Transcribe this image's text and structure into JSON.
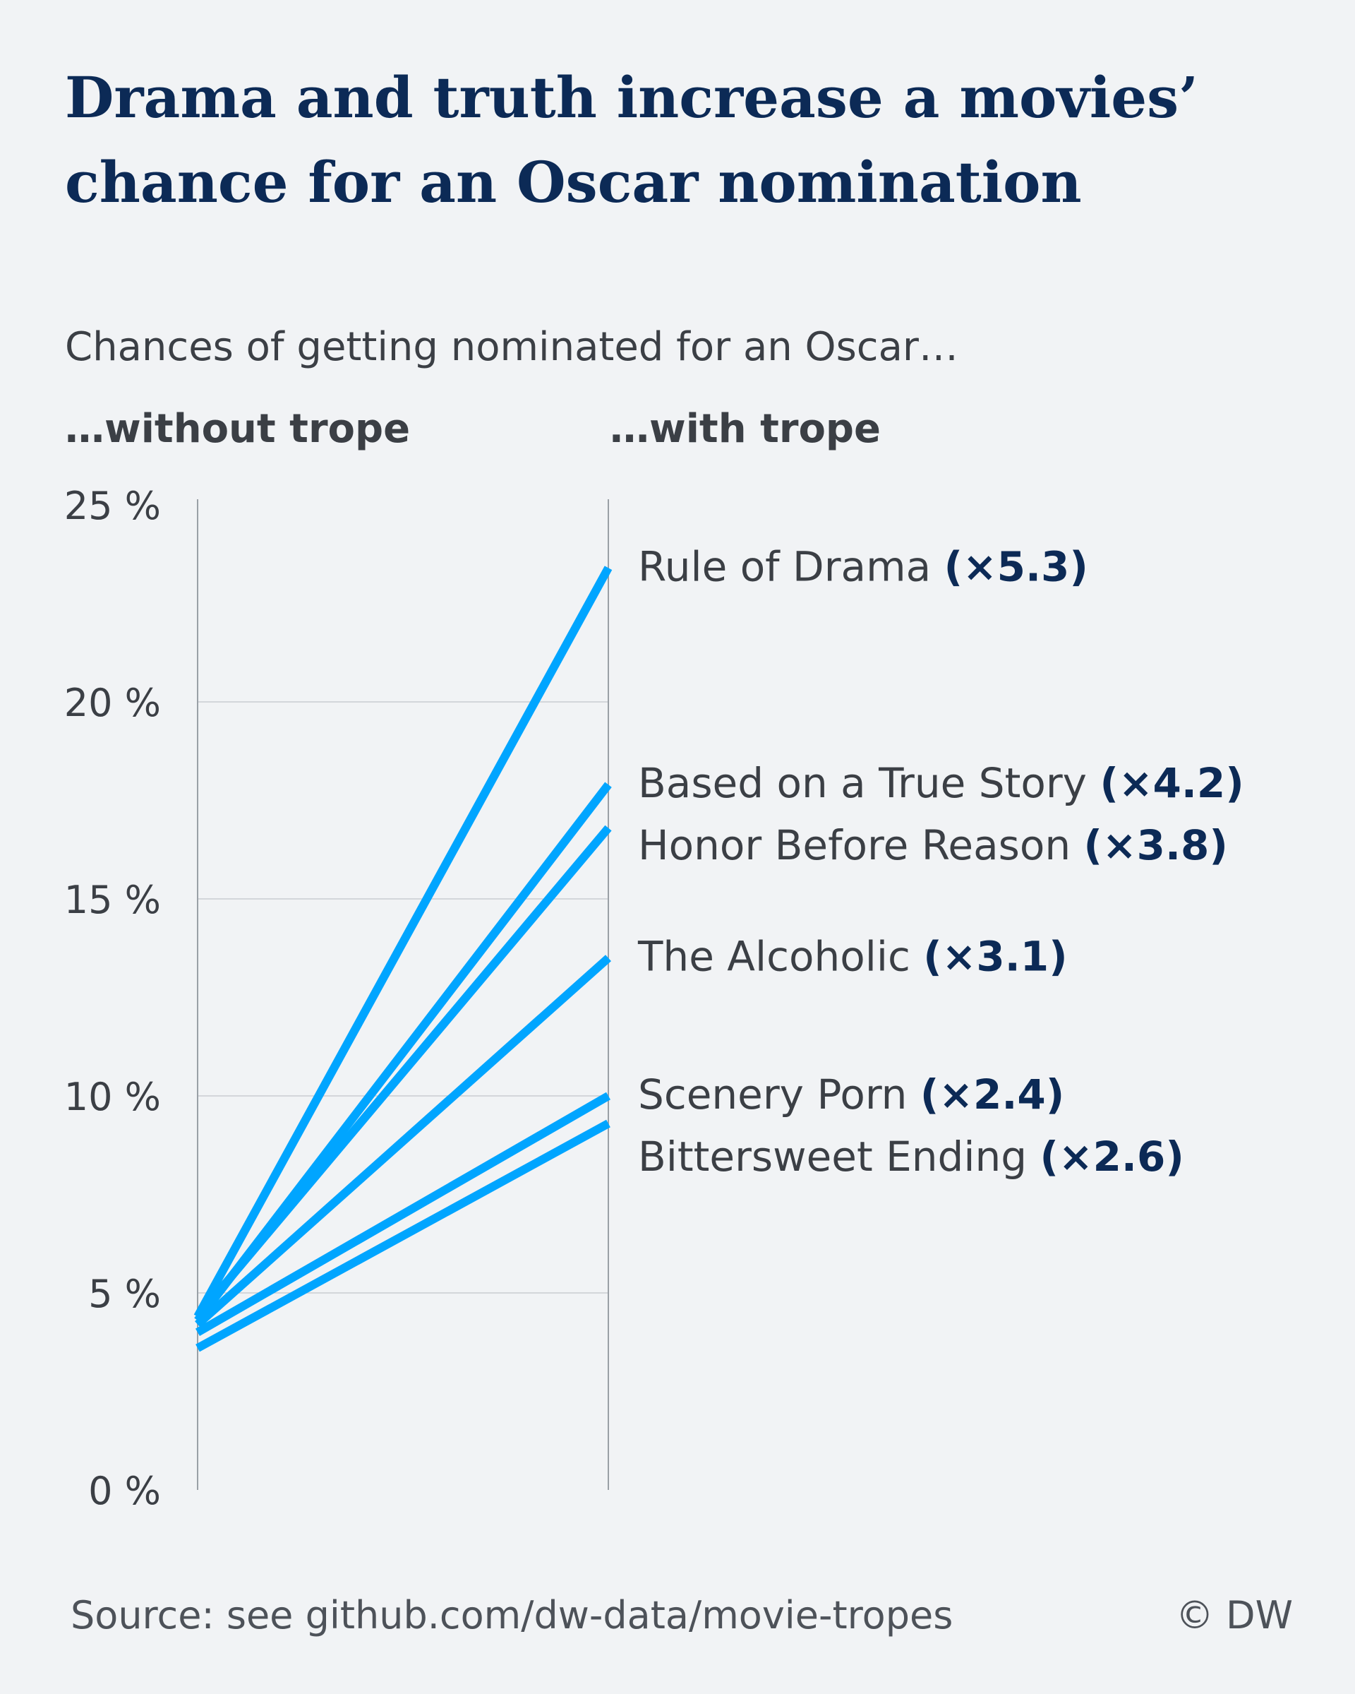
{
  "title": "Drama and truth increase a movies’ chance for an Oscar nomination",
  "subtitle": "Chances of getting nominated for an Oscar…",
  "columns": {
    "left": "…without trope",
    "right": "…with trope"
  },
  "source": "Source: see github.com/dw-data/movie-tropes",
  "credit": "© DW",
  "colors": {
    "line": "#00a5ff",
    "label": "#3b3f45",
    "factor": "#0c2a56",
    "grid": "#c9cdd2",
    "axis": "#9aa0a6"
  },
  "chart_data": {
    "type": "line",
    "x": [
      "…without trope",
      "…with trope"
    ],
    "ylim": [
      0,
      25
    ],
    "yticks": [
      0,
      5,
      10,
      15,
      20,
      25
    ],
    "ytick_labels": [
      "0 %",
      "5 %",
      "10 %",
      "15 %",
      "20 %",
      "25 %"
    ],
    "grid": true,
    "series": [
      {
        "name": "Rule of Drama",
        "factor": "(×5.3)",
        "values": [
          4.4,
          23.4
        ]
      },
      {
        "name": "Based on a True Story",
        "factor": "(×4.2)",
        "values": [
          4.3,
          17.9
        ]
      },
      {
        "name": "Honor Before Reason",
        "factor": "(×3.8)",
        "values": [
          4.4,
          16.8
        ]
      },
      {
        "name": "The Alcoholic",
        "factor": "(×3.1)",
        "values": [
          4.2,
          13.5
        ]
      },
      {
        "name": "Scenery Porn",
        "factor": "(×2.4)",
        "values": [
          4.0,
          10.0
        ]
      },
      {
        "name": "Bittersweet Ending",
        "factor": "(×2.6)",
        "values": [
          3.6,
          9.3
        ]
      }
    ]
  }
}
